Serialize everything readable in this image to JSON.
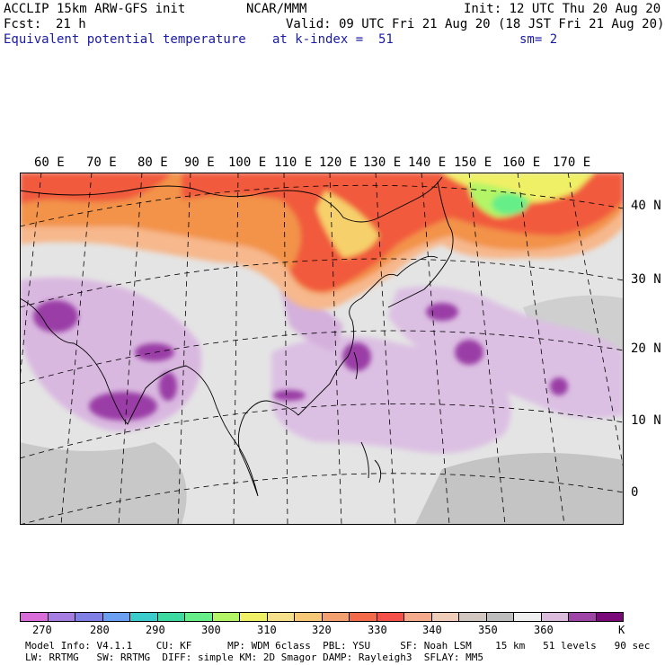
{
  "header": {
    "line1_left": "ACCLIP 15km ARW-GFS init",
    "line1_center": "NCAR/MMM",
    "line1_right": "Init: 12 UTC Thu 20 Aug 20",
    "line2_left_label": "Fcst:",
    "line2_left_value": "21 h",
    "line2_right": "Valid: 09 UTC Fri 21 Aug 20 (18 JST Fri 21 Aug 20)",
    "line3_field": "Equivalent potential temperature",
    "line3_level": "at k-index =  51",
    "line3_smooth": "sm= 2"
  },
  "map": {
    "lon_labels": [
      "60 E",
      "70 E",
      "80 E",
      "90 E",
      "100 E",
      "110 E",
      "120 E",
      "130 E",
      "140 E",
      "150 E",
      "160 E",
      "170 E"
    ],
    "lat_labels": [
      "40 N",
      "30 N",
      "20 N",
      "10 N",
      "0"
    ]
  },
  "colorbar": {
    "colors": [
      "#d86cd8",
      "#a67de0",
      "#7f7fe6",
      "#6a9ff2",
      "#3ccccc",
      "#3cd9a0",
      "#66ee88",
      "#b3f566",
      "#f0f066",
      "#f6e08c",
      "#f6c878",
      "#f2a070",
      "#f26a4a",
      "#f4504a",
      "#f6aa8c",
      "#f0cdb8",
      "#d2c6c0",
      "#bebebe",
      "#efefef",
      "#dcbcdc",
      "#a045a8",
      "#7a0a7a"
    ],
    "tick_labels": [
      "270",
      "280",
      "290",
      "300",
      "310",
      "320",
      "330",
      "340",
      "350",
      "360"
    ],
    "unit": "K"
  },
  "footer": {
    "line1": "Model Info: V4.1.1    CU: KF      MP: WDM 6class  PBL: YSU     SF: Noah LSM    15 km   51 levels   90 sec",
    "line2": "LW: RRTMG   SW: RRTMG  DIFF: simple KM: 2D Smagor DAMP: Rayleigh3  SFLAY: MM5"
  }
}
